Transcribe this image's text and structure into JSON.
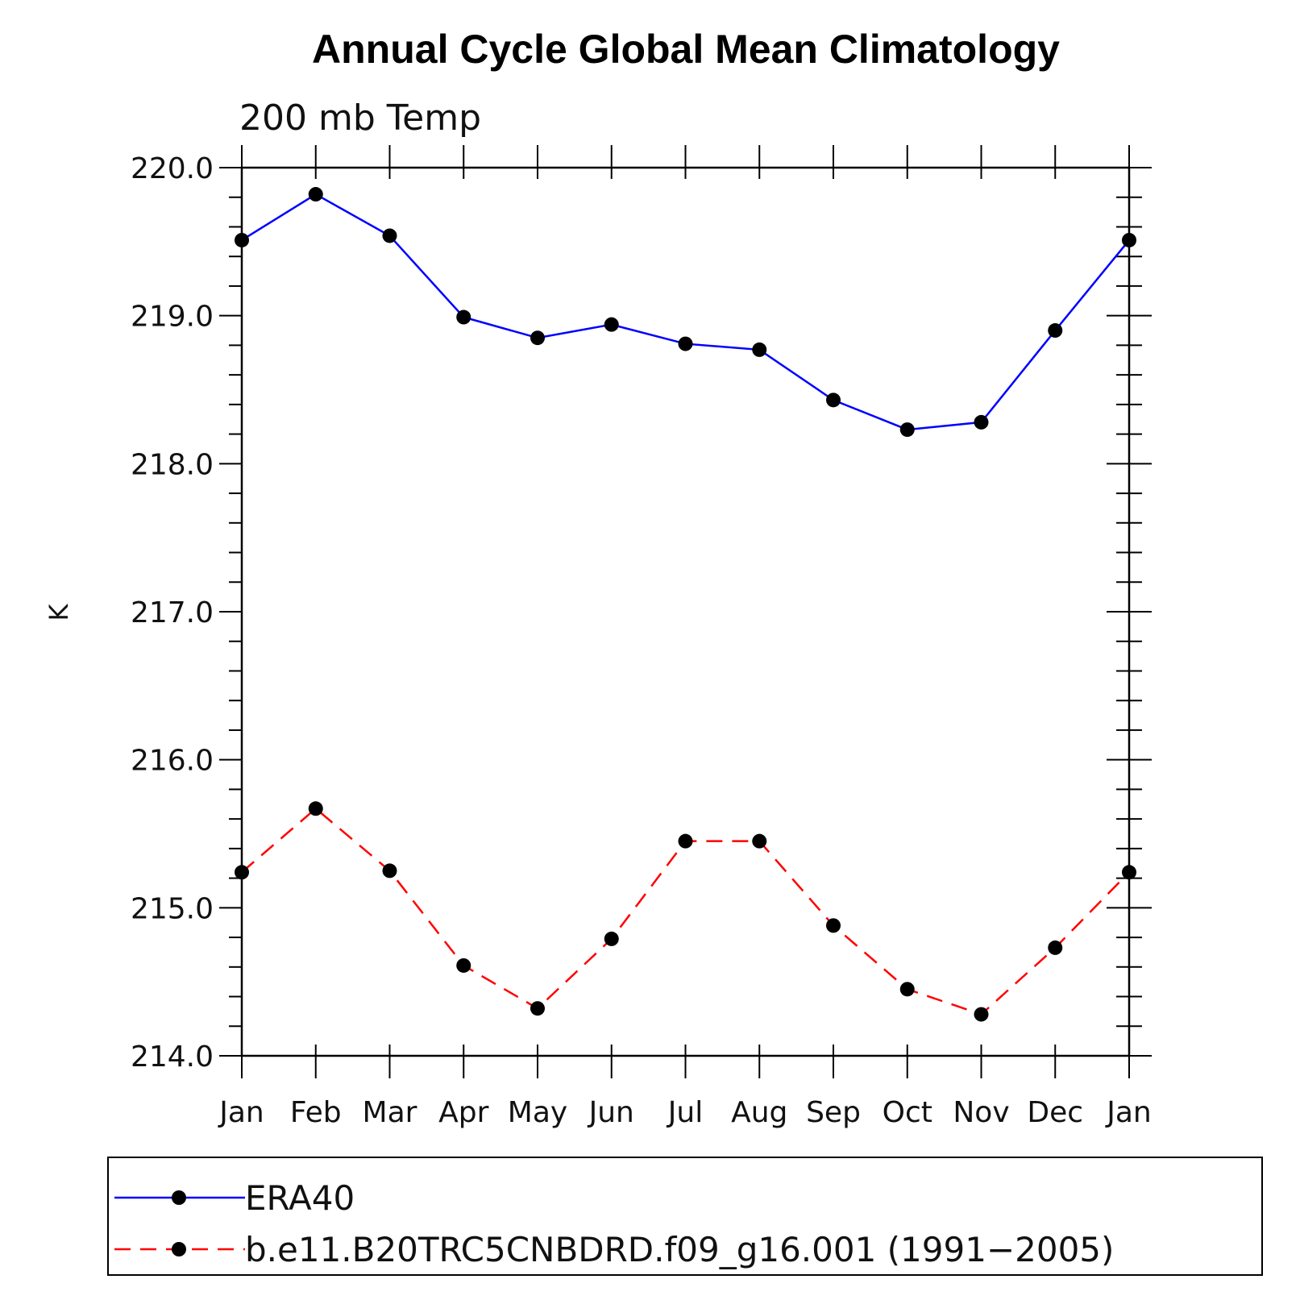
{
  "chart_data": {
    "type": "line",
    "title": "Annual Cycle Global Mean Climatology",
    "subtitle": "200 mb Temp",
    "xlabel": "",
    "ylabel": "K",
    "categories": [
      "Jan",
      "Feb",
      "Mar",
      "Apr",
      "May",
      "Jun",
      "Jul",
      "Aug",
      "Sep",
      "Oct",
      "Nov",
      "Dec",
      "Jan"
    ],
    "ylim": [
      214.0,
      220.0
    ],
    "yticks": [
      "214.0",
      "215.0",
      "216.0",
      "217.0",
      "218.0",
      "219.0",
      "220.0"
    ],
    "grid": false,
    "legend_placement": "bottom",
    "series": [
      {
        "name": "ERA40",
        "color": "#0000ff",
        "dash": "solid",
        "marker": "filled-circle",
        "values": [
          219.51,
          219.82,
          219.54,
          218.99,
          218.85,
          218.94,
          218.81,
          218.77,
          218.43,
          218.23,
          218.28,
          218.9,
          219.51
        ]
      },
      {
        "name": "b.e11.B20TRC5CNBDRD.f09_g16.001 (1991−2005)",
        "color": "#ff0000",
        "dash": "dashed",
        "marker": "filled-circle",
        "values": [
          215.24,
          215.67,
          215.25,
          214.61,
          214.32,
          214.79,
          215.45,
          215.45,
          214.88,
          214.45,
          214.28,
          214.73,
          215.24
        ]
      }
    ]
  }
}
